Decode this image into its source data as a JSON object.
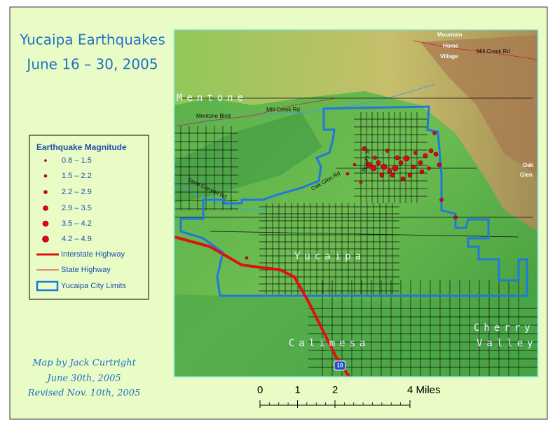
{
  "title": {
    "line1": "Yucaipa Earthquakes",
    "line2": "June 16 – 30, 2005"
  },
  "legend": {
    "title": "Earthquake Magnitude",
    "items": [
      "0.8 – 1.5",
      "1.5 – 2.2",
      "2.2 – 2.9",
      "2.9 – 3.5",
      "3.5 – 4.2",
      "4.2 – 4.9",
      "Interstate Highway",
      "State Highway",
      "Yucaipa City Limits"
    ]
  },
  "credits": [
    "Map by Jack Curtright",
    "June 30th, 2005",
    "Revised Nov. 10th, 2005"
  ],
  "scale": {
    "ticks": [
      0,
      1,
      2,
      {
        "value": 4,
        "label": "4 Miles"
      }
    ]
  },
  "map_labels": [
    "Mentone",
    "Mentone Blvd",
    "Mill Creek Rd",
    "Mountain",
    "Home",
    "Village",
    "Mill Creek Rd",
    "Yucaipa",
    "Calimesa",
    "Cherry",
    "Valley",
    "Oak",
    "Glen",
    "10",
    "Sand Canyon Rd",
    "Bryant St",
    "Oak Glen Rd"
  ]
}
